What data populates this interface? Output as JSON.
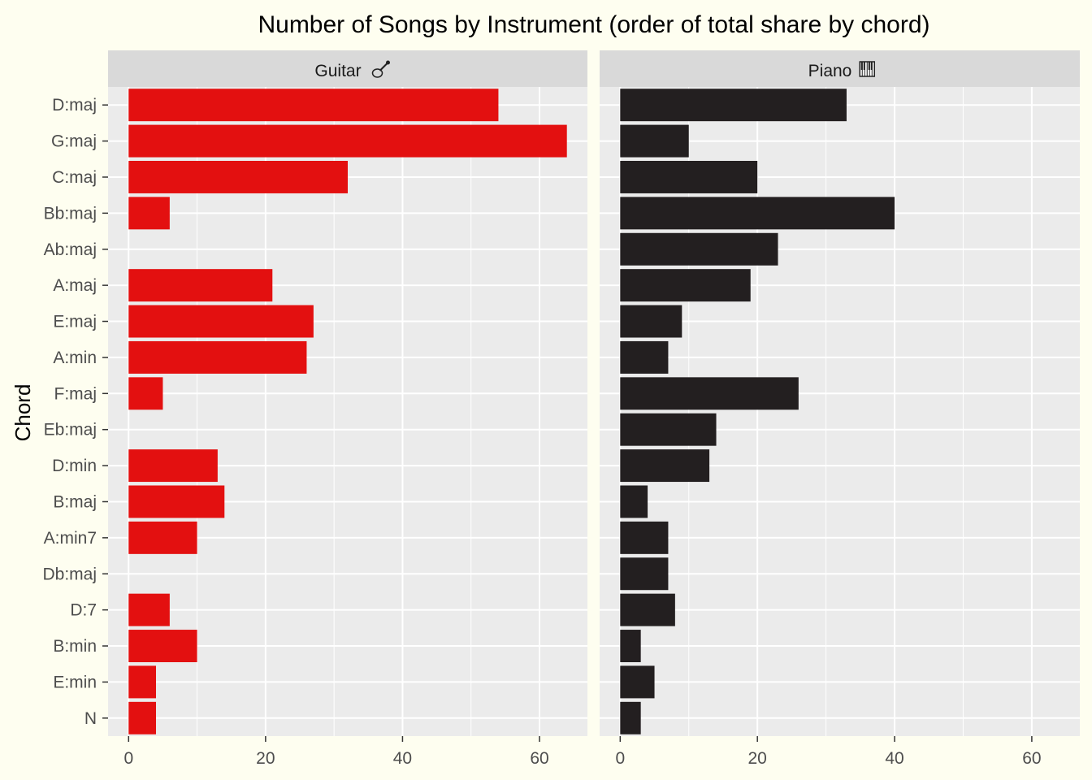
{
  "chart_data": {
    "type": "bar",
    "orientation": "horizontal",
    "title": "Number of Songs by Instrument (order of total share by chord)",
    "xlabel": "",
    "ylabel": "Chord",
    "xlim": [
      -3,
      67
    ],
    "x_ticks": [
      0,
      20,
      40,
      60
    ],
    "grid": true,
    "categories": [
      "D:maj",
      "G:maj",
      "C:maj",
      "Bb:maj",
      "Ab:maj",
      "A:maj",
      "E:maj",
      "A:min",
      "F:maj",
      "Eb:maj",
      "D:min",
      "B:maj",
      "A:min7",
      "Db:maj",
      "D:7",
      "B:min",
      "E:min",
      "N"
    ],
    "panels": [
      {
        "name": "Guitar",
        "strip_label": "Guitar",
        "icon": "guitar-icon",
        "color": "#e31010",
        "values": [
          54,
          64,
          32,
          6,
          0,
          21,
          27,
          26,
          5,
          0,
          13,
          14,
          10,
          0,
          6,
          10,
          4,
          4
        ]
      },
      {
        "name": "Piano",
        "strip_label": "Piano",
        "icon": "piano-keys-icon",
        "color": "#231f20",
        "values": [
          33,
          10,
          20,
          40,
          23,
          19,
          9,
          7,
          26,
          14,
          13,
          4,
          7,
          7,
          8,
          3,
          5,
          3
        ]
      }
    ]
  },
  "colors": {
    "page_background": "#fefef0",
    "panel_background": "#ebebeb",
    "strip_background": "#d9d9d9",
    "grid": "#ffffff"
  }
}
